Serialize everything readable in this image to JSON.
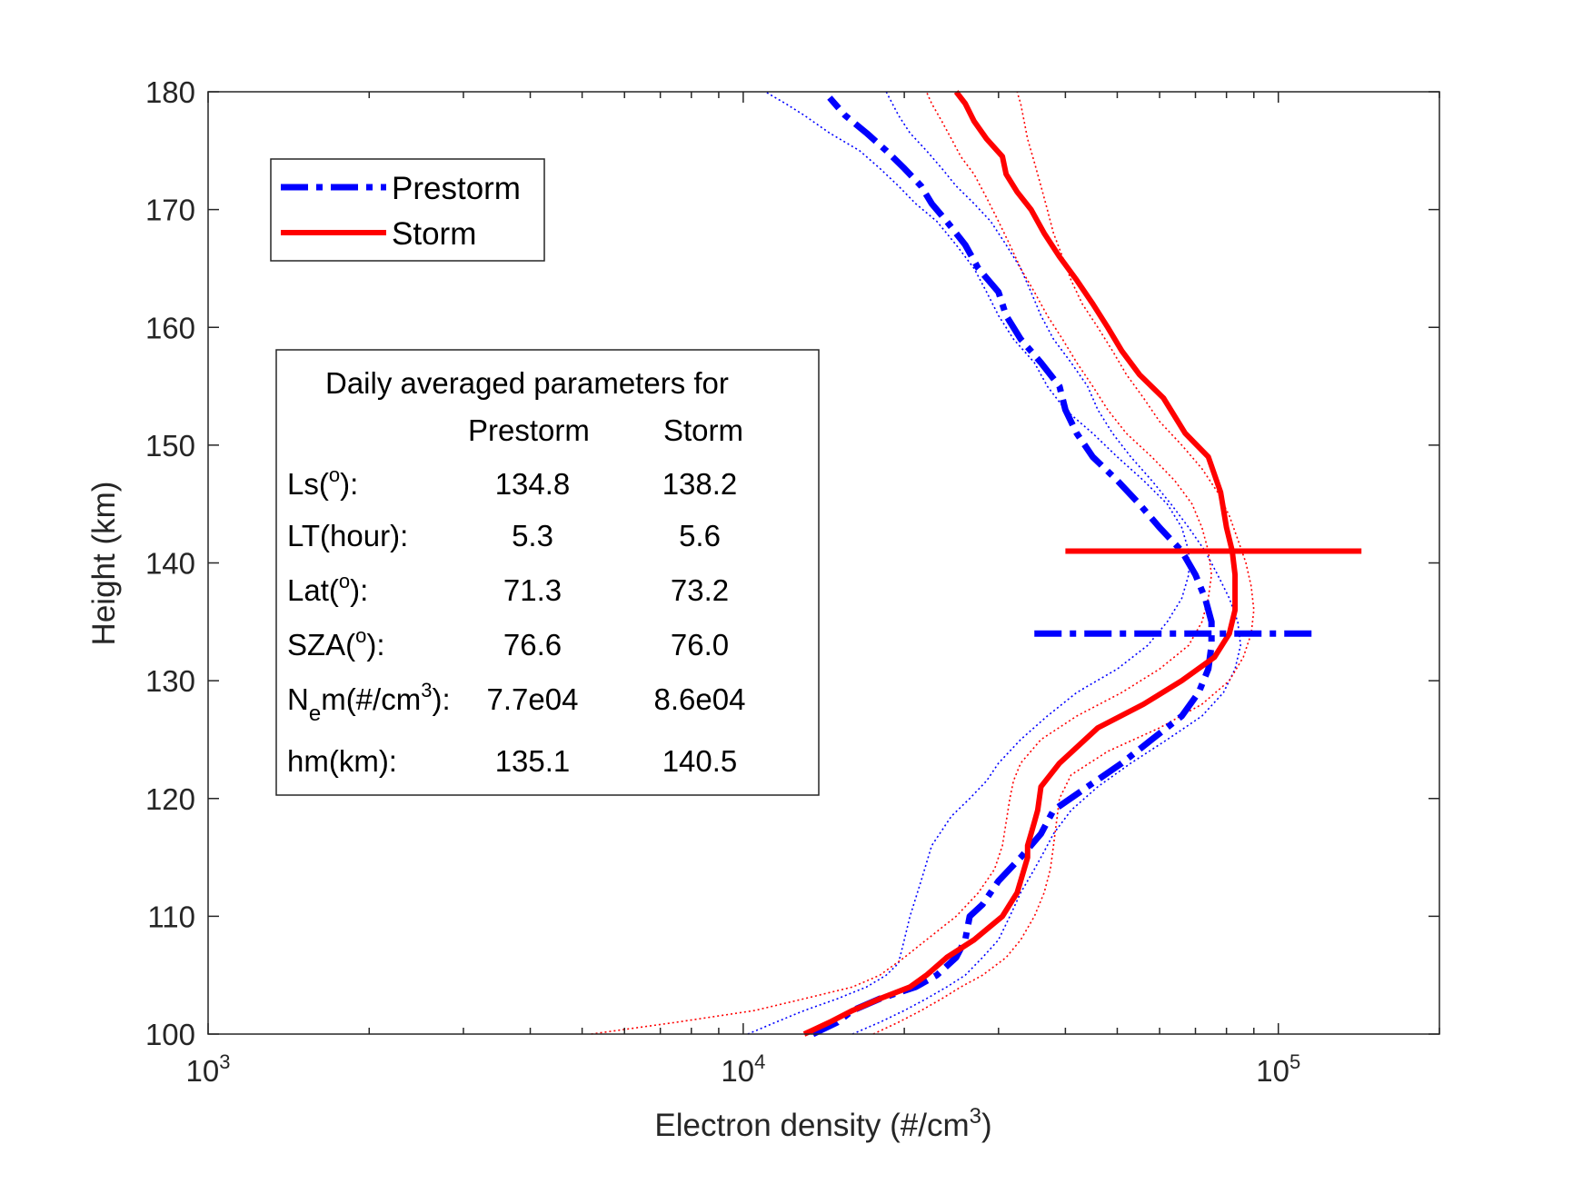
{
  "chart_data": {
    "type": "line",
    "xlabel": "Electron density (#/cm",
    "xlabel_sup": "3",
    "xlabel_end": ")",
    "ylabel": "Height (km)",
    "xscale": "log",
    "xlim": [
      1000,
      200000
    ],
    "ylim": [
      100,
      180
    ],
    "x_ticks": [
      {
        "base": "10",
        "exp": "3",
        "value": 1000
      },
      {
        "base": "10",
        "exp": "4",
        "value": 10000
      },
      {
        "base": "10",
        "exp": "5",
        "value": 100000
      }
    ],
    "y_ticks": [
      "100",
      "110",
      "120",
      "130",
      "140",
      "150",
      "160",
      "170",
      "180"
    ],
    "legend": {
      "placement": "top-left",
      "entries": [
        {
          "label": "Prestorm",
          "color": "#0000ff",
          "style": "dashdot"
        },
        {
          "label": "Storm",
          "color": "#ff0000",
          "style": "solid"
        }
      ]
    },
    "series": [
      {
        "name": "Prestorm",
        "color": "#0000ff",
        "style": "dashdot",
        "width": 7,
        "x": [
          13500,
          15000,
          16000,
          18000,
          21000,
          23000,
          25000,
          26000,
          26500,
          28000,
          30000,
          33000,
          36000,
          38000,
          44000,
          51000,
          58000,
          66000,
          71000,
          74000,
          75000,
          75000,
          73000,
          70000,
          66000,
          60000,
          55000,
          50000,
          45000,
          42000,
          40000,
          39000,
          36000,
          33000,
          31000,
          30000,
          27500,
          26000,
          24000,
          22500,
          21500,
          20000,
          18500,
          17000,
          15500,
          14500
        ],
        "y": [
          100,
          101,
          102,
          103,
          104,
          105,
          106.5,
          108,
          110,
          111,
          113,
          115,
          117,
          119,
          121,
          123,
          125,
          127,
          129,
          131,
          133,
          135,
          137,
          139,
          141,
          143,
          145,
          147,
          149,
          151,
          153,
          155,
          157,
          159,
          161,
          163,
          165,
          167,
          169,
          170.5,
          172,
          173.5,
          175,
          176.5,
          178,
          179.5
        ]
      },
      {
        "name": "Storm",
        "color": "#ff0000",
        "style": "solid",
        "width": 6,
        "x": [
          13000,
          14500,
          16000,
          18000,
          20500,
          22000,
          24000,
          27000,
          30500,
          32500,
          33500,
          34000,
          34000,
          34500,
          35000,
          35500,
          36000,
          39000,
          46000,
          56000,
          66000,
          76000,
          81000,
          83000,
          83000,
          82000,
          80000,
          78000,
          74000,
          67000,
          61000,
          55000,
          51000,
          48000,
          45000,
          42000,
          39000,
          36500,
          34500,
          32500,
          31000,
          30500,
          28500,
          27000,
          26000,
          25000
        ],
        "y": [
          100,
          101,
          102,
          103,
          104,
          105,
          106.5,
          108,
          110,
          112,
          114,
          115,
          116,
          117,
          118,
          119,
          121,
          123,
          126,
          128,
          130,
          132,
          134,
          136,
          139,
          141,
          143,
          146,
          149,
          151,
          154,
          156,
          158,
          160,
          162,
          164,
          166,
          168,
          170,
          171.5,
          173,
          174.5,
          176,
          177.5,
          179,
          180
        ]
      },
      {
        "name": "",
        "color": "#0000ff",
        "style": "dotted",
        "width": 1.6,
        "x": [
          10200,
          11500,
          13000,
          15000,
          17000,
          18500,
          19500,
          20000,
          20500,
          21500,
          22500,
          24500,
          26500,
          28500,
          30000,
          33000,
          37000,
          42000,
          50000,
          57000,
          62000,
          66000,
          68000,
          68000,
          66000,
          62000,
          56000,
          50000,
          45000,
          40000,
          37000,
          35000,
          32000,
          30000,
          28500,
          27000,
          25000,
          23000,
          21000,
          19500,
          18000,
          16500,
          14500,
          13000,
          12000,
          11000
        ],
        "y": [
          100,
          101,
          102,
          103,
          104,
          105,
          106,
          108,
          110,
          113,
          116,
          118.5,
          120,
          121.5,
          123,
          125,
          127,
          129,
          131,
          133,
          135,
          137,
          139,
          141,
          143,
          145,
          147,
          149,
          151,
          153,
          155,
          157,
          159,
          161,
          163,
          165,
          167,
          169,
          170.5,
          172,
          173.5,
          175,
          176.5,
          178,
          179,
          180
        ]
      },
      {
        "name": "",
        "color": "#0000ff",
        "style": "dotted",
        "width": 1.6,
        "x": [
          16000,
          18000,
          20000,
          22000,
          24000,
          26000,
          28000,
          30000,
          31500,
          33000,
          35000,
          36500,
          38000,
          41000,
          46000,
          53000,
          62000,
          72000,
          79000,
          83000,
          85000,
          84000,
          81000,
          77000,
          73000,
          68000,
          63000,
          58000,
          53000,
          49000,
          46000,
          44000,
          41000,
          38000,
          36000,
          34500,
          33000,
          31000,
          29000,
          27000,
          25000,
          23500,
          22000,
          20500,
          19500,
          18500
        ],
        "y": [
          100,
          101,
          102,
          103,
          104,
          105,
          106.5,
          108,
          110,
          112,
          114,
          115.5,
          117,
          119,
          121,
          123,
          125,
          127,
          129,
          131,
          133,
          135,
          137,
          139,
          141,
          143,
          145,
          147,
          149,
          151,
          153,
          155,
          157,
          159,
          161,
          163,
          165,
          167,
          169,
          170.5,
          172,
          173.5,
          175,
          176.5,
          178,
          180
        ]
      },
      {
        "name": "",
        "color": "#ff0000",
        "style": "dotted",
        "width": 1.6,
        "x": [
          5200,
          7500,
          10500,
          13000,
          16000,
          18000,
          20000,
          22000,
          25000,
          27500,
          29500,
          30500,
          31000,
          31500,
          32000,
          33000,
          36000,
          42000,
          51000,
          60000,
          68000,
          72000,
          74000,
          75000,
          74000,
          72000,
          69000,
          64000,
          58000,
          52000,
          48000,
          45000,
          42000,
          39500,
          37000,
          35000,
          33000,
          31500,
          30000,
          28500,
          27000,
          25500,
          24500,
          23500,
          22500,
          22000
        ],
        "y": [
          100,
          101,
          102,
          103,
          104,
          105,
          106.5,
          108,
          110,
          112,
          114,
          116,
          118,
          120,
          121.5,
          123,
          125,
          127,
          129,
          131,
          133,
          135,
          137,
          139,
          141,
          143,
          145,
          147,
          149,
          151,
          153,
          155,
          157,
          159,
          161,
          163,
          165,
          167,
          169,
          171,
          173,
          174.5,
          176,
          177.5,
          179,
          180
        ]
      },
      {
        "name": "",
        "color": "#ff0000",
        "style": "dotted",
        "width": 1.6,
        "x": [
          17500,
          19500,
          21500,
          23500,
          25500,
          28000,
          31000,
          33000,
          35000,
          36500,
          37500,
          38000,
          38500,
          39000,
          41000,
          48000,
          60000,
          72000,
          81000,
          86000,
          89000,
          90000,
          89000,
          87000,
          84000,
          81000,
          77000,
          72000,
          66000,
          60000,
          56000,
          52000,
          49000,
          46000,
          43000,
          41000,
          39500,
          38000,
          37000,
          36000,
          35000,
          34000,
          33500,
          33000,
          32500
        ],
        "y": [
          100,
          101,
          102,
          103,
          104,
          105,
          106.5,
          108,
          110,
          112,
          114,
          116,
          118,
          120,
          122,
          124,
          126,
          128,
          130,
          132,
          134,
          136,
          138,
          140,
          142,
          144,
          146,
          148,
          150,
          152,
          154,
          156,
          158,
          160,
          162,
          164,
          166,
          168,
          170,
          172,
          174,
          176,
          177.5,
          179,
          180
        ]
      }
    ],
    "markers": [
      {
        "name": "storm-peak-line",
        "color": "#ff0000",
        "style": "solid",
        "width": 6,
        "x_from": 40000,
        "x_to": 143000,
        "y": 141
      },
      {
        "name": "prestorm-peak-line",
        "color": "#0000ff",
        "style": "dashdot",
        "width": 7,
        "x_from": 35000,
        "x_to": 118000,
        "y": 134
      }
    ],
    "info_box": {
      "title": "Daily averaged parameters for",
      "col1": "Prestorm",
      "col2": "Storm",
      "rows": [
        {
          "label": "Ls(",
          "label_sup": "o",
          "label_end": "):",
          "v1": "134.8",
          "v2": "138.2"
        },
        {
          "label": "LT(hour):",
          "v1": "5.3",
          "v2": "5.6"
        },
        {
          "label": "Lat(",
          "label_sup": "o",
          "label_end": "):",
          "v1": "71.3",
          "v2": "73.2"
        },
        {
          "label": "SZA(",
          "label_sup": "o",
          "label_end": "):",
          "v1": "76.6",
          "v2": "76.0"
        },
        {
          "label": "N",
          "label_sub": "e",
          "label_mid": "m(#/cm",
          "label_sup": "3",
          "label_end": "):",
          "v1": "7.7e04",
          "v2": "8.6e04"
        },
        {
          "label": "hm(km):",
          "v1": "135.1",
          "v2": "140.5"
        }
      ]
    }
  }
}
